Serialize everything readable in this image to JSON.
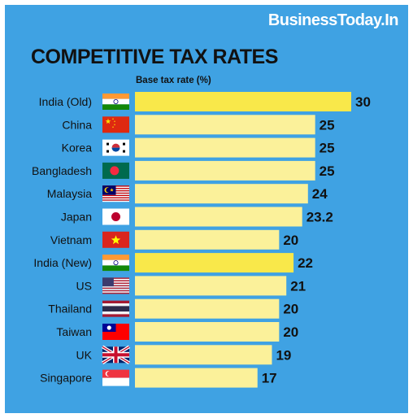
{
  "brand": "BusinessToday.In",
  "chart_data": {
    "type": "bar",
    "orientation": "horizontal",
    "title": "COMPETITIVE TAX RATES",
    "ylabel": "Base tax rate (%)",
    "categories": [
      "India (Old)",
      "China",
      "Korea",
      "Bangladesh",
      "Malaysia",
      "Japan",
      "Vietnam",
      "India (New)",
      "US",
      "Thailand",
      "Taiwan",
      "UK",
      "Singapore"
    ],
    "values": [
      30,
      25,
      25,
      25,
      24,
      23.2,
      20,
      22,
      21,
      20,
      20,
      19,
      17
    ],
    "value_labels": [
      "30",
      "25",
      "25",
      "25",
      "24",
      "23.2",
      "20",
      "22",
      "21",
      "20",
      "20",
      "19",
      "17"
    ],
    "flags": [
      "india-flag",
      "china-flag",
      "korea-flag",
      "bangladesh-flag",
      "malaysia-flag",
      "japan-flag",
      "vietnam-flag",
      "india-flag",
      "us-flag",
      "thailand-flag",
      "taiwan-flag",
      "uk-flag",
      "singapore-flag"
    ],
    "highlighted": [
      "India (Old)",
      "India (New)"
    ],
    "colors": {
      "background": "#3fa2e3",
      "bar": "#fbf19a",
      "bar_highlight": "#f9e84a",
      "text": "#111111"
    }
  }
}
